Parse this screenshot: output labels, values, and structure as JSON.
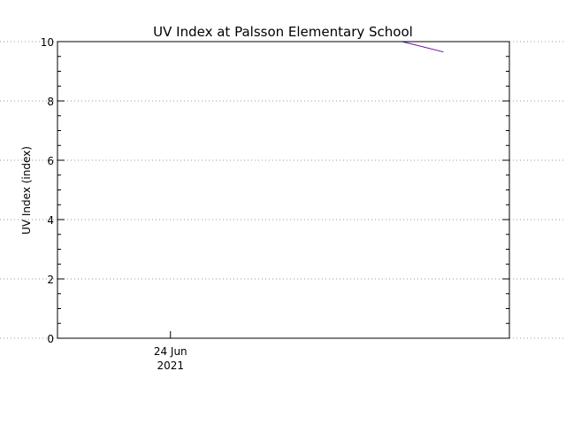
{
  "chart_data": {
    "type": "line",
    "title": "UV Index at Palsson Elementary School",
    "ylabel": "UV Index (index)",
    "xlabel": "",
    "ylim": [
      0,
      10
    ],
    "yticks": [
      0,
      2,
      4,
      6,
      8,
      10
    ],
    "y_minor_step": 0.5,
    "grid": true,
    "xlim": [
      "2021-06-23T12:00",
      "2021-06-25T12:00"
    ],
    "xticks": [
      {
        "at": "2021-06-24T00:00",
        "line1": "24 Jun",
        "line2": "2021"
      }
    ],
    "series": [
      {
        "color": "#6a0dad",
        "points": [
          {
            "x": "2021-06-25T00:37",
            "y": 10.0
          },
          {
            "x": "2021-06-25T05:00",
            "y": 9.65
          }
        ]
      }
    ]
  }
}
